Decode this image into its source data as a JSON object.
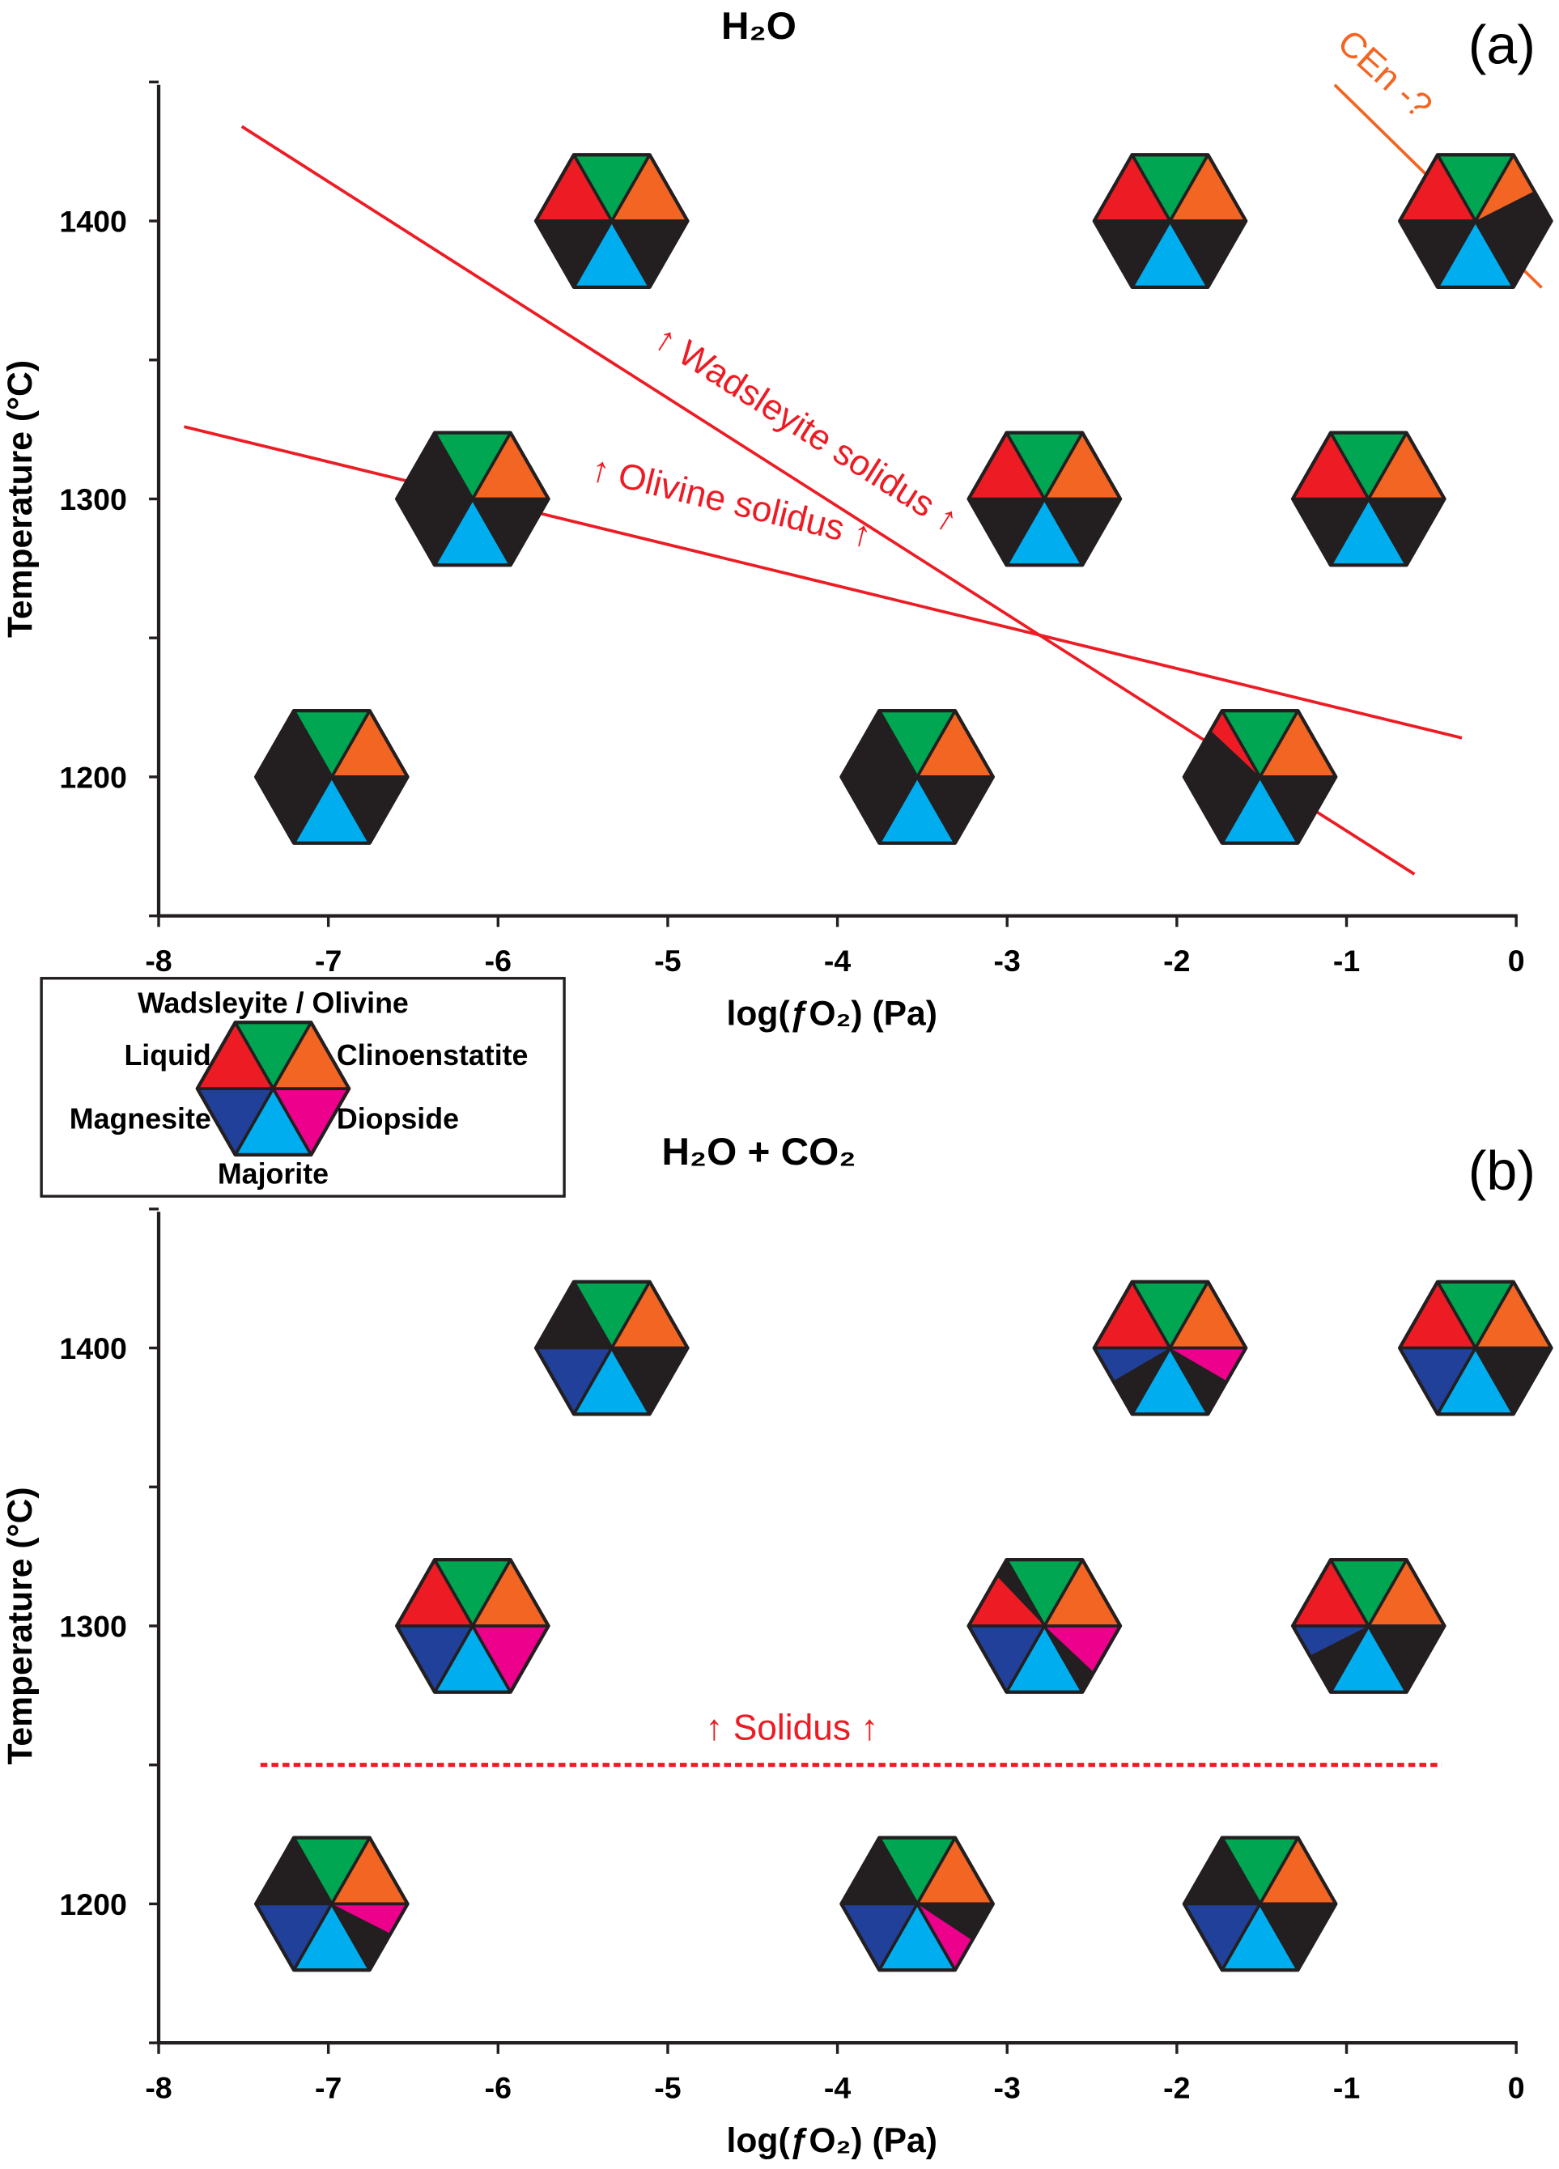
{
  "colors": {
    "wadsleyite": "#00A651",
    "clinoenstatite": "#F26522",
    "diopside": "#EC008C",
    "majorite": "#00AEEF",
    "magnesite": "#21409A",
    "liquid": "#ED1C24",
    "absent": "#231F20",
    "solidus_line": "#ED1C24",
    "cen_line": "#F26522"
  },
  "legend": {
    "top": "Wadsleyite / Olivine",
    "upper_left": "Liquid",
    "upper_right": "Clinoenstatite",
    "lower_left": "Magnesite",
    "lower_right": "Diopside",
    "bottom": "Majorite"
  },
  "chart_data": [
    {
      "type": "scatter",
      "panel_label": "(a)",
      "title": "H₂O",
      "title_main": "H",
      "title_sub": "2",
      "title_end": "O",
      "xlabel": "log(ƒO₂) (Pa)",
      "ylabel": "Temperature (°C)",
      "xlim": [
        -8,
        0
      ],
      "ylim": [
        1150,
        1449
      ],
      "xticks": [
        "-8",
        "-7",
        "-6",
        "-5",
        "-4",
        "-3",
        "-2",
        "-1",
        "0"
      ],
      "yticks": [
        "1200",
        "1300",
        "1400"
      ],
      "lines": [
        {
          "name": "↑ Wadsleyite solidus ↑",
          "x": [
            -7.51,
            -0.6
          ],
          "y": [
            1434,
            1165
          ],
          "color": "red",
          "dashed": false
        },
        {
          "name": "↑ Olivine solidus ↑",
          "x": [
            -7.85,
            -0.32
          ],
          "y": [
            1326,
            1214
          ],
          "color": "red",
          "dashed": false
        },
        {
          "name": "CEn -?",
          "x": [
            -1.07,
            0.15
          ],
          "y": [
            1449,
            1376
          ],
          "color": "orange",
          "dashed": false
        }
      ],
      "points": [
        {
          "x": -5.33,
          "y": 1400,
          "sectors": {
            "wadsleyite": 1,
            "clinoenstatite": 1,
            "diopside": 0,
            "majorite": 1,
            "magnesite": 0,
            "liquid": 1
          }
        },
        {
          "x": -2.04,
          "y": 1400,
          "sectors": {
            "wadsleyite": 1,
            "clinoenstatite": 1,
            "diopside": 0,
            "majorite": 1,
            "magnesite": 0,
            "liquid": 1
          }
        },
        {
          "x": -0.24,
          "y": 1400,
          "sectors": {
            "wadsleyite": 1,
            "clinoenstatite": 0.55,
            "diopside": 0,
            "majorite": 1,
            "magnesite": 0,
            "liquid": 1
          }
        },
        {
          "x": -6.15,
          "y": 1300,
          "sectors": {
            "wadsleyite": 1,
            "clinoenstatite": 1,
            "diopside": 0,
            "majorite": 1,
            "magnesite": 0,
            "liquid": 0
          }
        },
        {
          "x": -2.78,
          "y": 1300,
          "sectors": {
            "wadsleyite": 1,
            "clinoenstatite": 1,
            "diopside": 0,
            "majorite": 1,
            "magnesite": 0,
            "liquid": 1
          }
        },
        {
          "x": -0.87,
          "y": 1300,
          "sectors": {
            "wadsleyite": 1,
            "clinoenstatite": 1,
            "diopside": 0,
            "majorite": 1,
            "magnesite": 0,
            "liquid": 1
          }
        },
        {
          "x": -6.98,
          "y": 1200,
          "sectors": {
            "wadsleyite": 1,
            "clinoenstatite": 1,
            "diopside": 0,
            "majorite": 1,
            "magnesite": 0,
            "liquid": 0
          }
        },
        {
          "x": -3.53,
          "y": 1200,
          "sectors": {
            "wadsleyite": 1,
            "clinoenstatite": 1,
            "diopside": 0,
            "majorite": 1,
            "magnesite": 0,
            "liquid": 0
          }
        },
        {
          "x": -1.51,
          "y": 1200,
          "sectors": {
            "wadsleyite": 1,
            "clinoenstatite": 1,
            "diopside": 0,
            "majorite": 1,
            "magnesite": 0,
            "liquid": -0.3
          }
        }
      ]
    },
    {
      "type": "scatter",
      "panel_label": "(b)",
      "title": "H₂O + CO₂",
      "title_main": "H",
      "title_sub": "2",
      "title_end": "O + CO",
      "title_sub2": "2",
      "xlabel": "log(ƒO₂) (Pa)",
      "ylabel": "Temperature (°C)",
      "xlim": [
        -8,
        0
      ],
      "ylim": [
        1150,
        1449
      ],
      "xticks": [
        "-8",
        "-7",
        "-6",
        "-5",
        "-4",
        "-3",
        "-2",
        "-1",
        "0"
      ],
      "yticks": [
        "1200",
        "1300",
        "1400"
      ],
      "lines": [
        {
          "name": "↑ Solidus ↑",
          "x": [
            -7.4,
            -0.44
          ],
          "y": [
            1250,
            1250
          ],
          "color": "red",
          "dashed": true
        }
      ],
      "points": [
        {
          "x": -5.33,
          "y": 1400,
          "sectors": {
            "wadsleyite": 1,
            "clinoenstatite": 1,
            "diopside": 0,
            "majorite": 1,
            "magnesite": 1,
            "liquid": 0
          }
        },
        {
          "x": -2.04,
          "y": 1400,
          "sectors": {
            "wadsleyite": 1,
            "clinoenstatite": 1,
            "diopside": 0.5,
            "majorite": 1,
            "magnesite": -0.5,
            "liquid": 1
          }
        },
        {
          "x": -0.24,
          "y": 1400,
          "sectors": {
            "wadsleyite": 1,
            "clinoenstatite": 1,
            "diopside": 0,
            "majorite": 1,
            "magnesite": 1,
            "liquid": 1
          }
        },
        {
          "x": -6.15,
          "y": 1300,
          "sectors": {
            "wadsleyite": 1,
            "clinoenstatite": 1,
            "diopside": 1,
            "majorite": 1,
            "magnesite": 1,
            "liquid": 1
          }
        },
        {
          "x": -2.78,
          "y": 1300,
          "sectors": {
            "wadsleyite": 1,
            "clinoenstatite": 1,
            "diopside": 0.7,
            "majorite": 1,
            "magnesite": 1,
            "liquid": 0.75
          }
        },
        {
          "x": -0.87,
          "y": 1300,
          "sectors": {
            "wadsleyite": 1,
            "clinoenstatite": 1,
            "diopside": 0,
            "majorite": 1,
            "magnesite": -0.45,
            "liquid": 1
          }
        },
        {
          "x": -6.98,
          "y": 1200,
          "sectors": {
            "wadsleyite": 1,
            "clinoenstatite": 1,
            "diopside": 0.45,
            "majorite": 1,
            "magnesite": 1,
            "liquid": 0
          }
        },
        {
          "x": -3.53,
          "y": 1200,
          "sectors": {
            "wadsleyite": 1,
            "clinoenstatite": 1,
            "diopside": -0.45,
            "majorite": 1,
            "magnesite": 1,
            "liquid": 0
          }
        },
        {
          "x": -1.51,
          "y": 1200,
          "sectors": {
            "wadsleyite": 1,
            "clinoenstatite": 1,
            "diopside": 0,
            "majorite": 1,
            "magnesite": 1,
            "liquid": 0
          }
        }
      ]
    }
  ]
}
